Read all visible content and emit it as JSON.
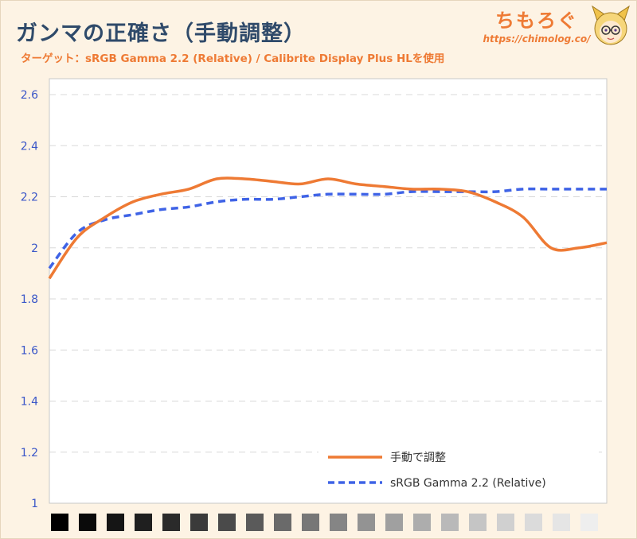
{
  "title": "ガンマの正確さ（手動調整）",
  "subtitle": "ターゲット：sRGB Gamma 2.2 (Relative) / Calibrite Display Plus HLを使用",
  "brand": {
    "name": "ちもろぐ",
    "url": "https://chimolog.co/"
  },
  "colors": {
    "background": "#fdf3e4",
    "plot_background": "#ffffff",
    "manual_series": "#ee7a34",
    "target_series": "#3f63e6",
    "tick_color": "#3a56c8"
  },
  "chart_data": {
    "type": "line",
    "title": "ガンマの正確さ（手動調整）",
    "subtitle": "ターゲット：sRGB Gamma 2.2 (Relative) / Calibrite Display Plus HLを使用",
    "xlabel": "",
    "ylabel": "",
    "ylim": [
      1,
      2.6
    ],
    "yticks": [
      "1",
      "1.2",
      "1.4",
      "1.6",
      "1.8",
      "2",
      "2.2",
      "2.4",
      "2.6"
    ],
    "grid": true,
    "legend_position": "bottom-right",
    "x": [
      0,
      5,
      10,
      15,
      20,
      25,
      30,
      35,
      40,
      45,
      50,
      55,
      60,
      65,
      70,
      75,
      80,
      85,
      90,
      95,
      100
    ],
    "x_swatches": [
      "#000000",
      "#0a0a0a",
      "#151515",
      "#1f1f1f",
      "#2a2a2a",
      "#3a3a3a",
      "#4a4a4a",
      "#5a5a5a",
      "#6a6a6a",
      "#777777",
      "#858585",
      "#939393",
      "#a0a0a0",
      "#adadad",
      "#b9b9b9",
      "#c5c5c5",
      "#d0d0d0",
      "#dbdbdb",
      "#e5e5e5",
      "#eeeeee"
    ],
    "series": [
      {
        "name": "手動で調整",
        "style": "solid",
        "color": "#ee7a34",
        "values": [
          1.88,
          2.04,
          2.12,
          2.18,
          2.21,
          2.23,
          2.27,
          2.27,
          2.26,
          2.25,
          2.27,
          2.25,
          2.24,
          2.23,
          2.23,
          2.22,
          2.18,
          2.12,
          2.0,
          2.0,
          2.02
        ]
      },
      {
        "name": "sRGB Gamma 2.2 (Relative)",
        "style": "dashed",
        "color": "#3f63e6",
        "values": [
          1.92,
          2.06,
          2.11,
          2.13,
          2.15,
          2.16,
          2.18,
          2.19,
          2.19,
          2.2,
          2.21,
          2.21,
          2.21,
          2.22,
          2.22,
          2.22,
          2.22,
          2.23,
          2.23,
          2.23,
          2.23
        ]
      }
    ]
  }
}
